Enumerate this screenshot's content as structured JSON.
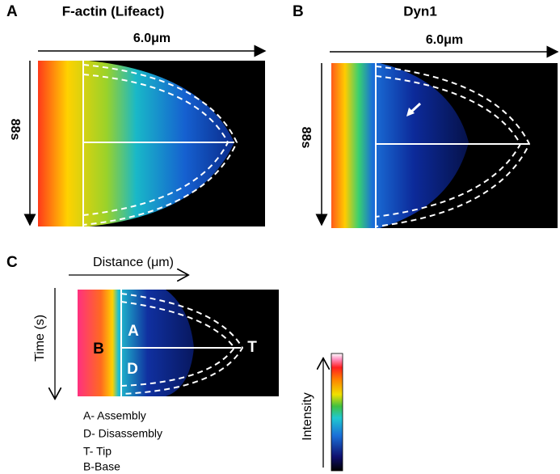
{
  "panels": [
    {
      "label": "A",
      "title": "F-actin (Lifeact)",
      "x_axis": "6.0μm",
      "y_axis": "88s"
    },
    {
      "label": "B",
      "title": "Dyn1",
      "x_axis": "6.0μm",
      "y_axis": "88s"
    },
    {
      "label": "C",
      "x_axis": "Distance (μm)",
      "y_axis": "Time (s)",
      "markers": {
        "assembly": "A",
        "disassembly": "D",
        "tip": "T",
        "base": "B"
      },
      "legend": [
        "A- Assembly",
        "D- Disassembly",
        "T- Tip",
        "B-Base"
      ],
      "colorbar": "Intensity"
    }
  ]
}
